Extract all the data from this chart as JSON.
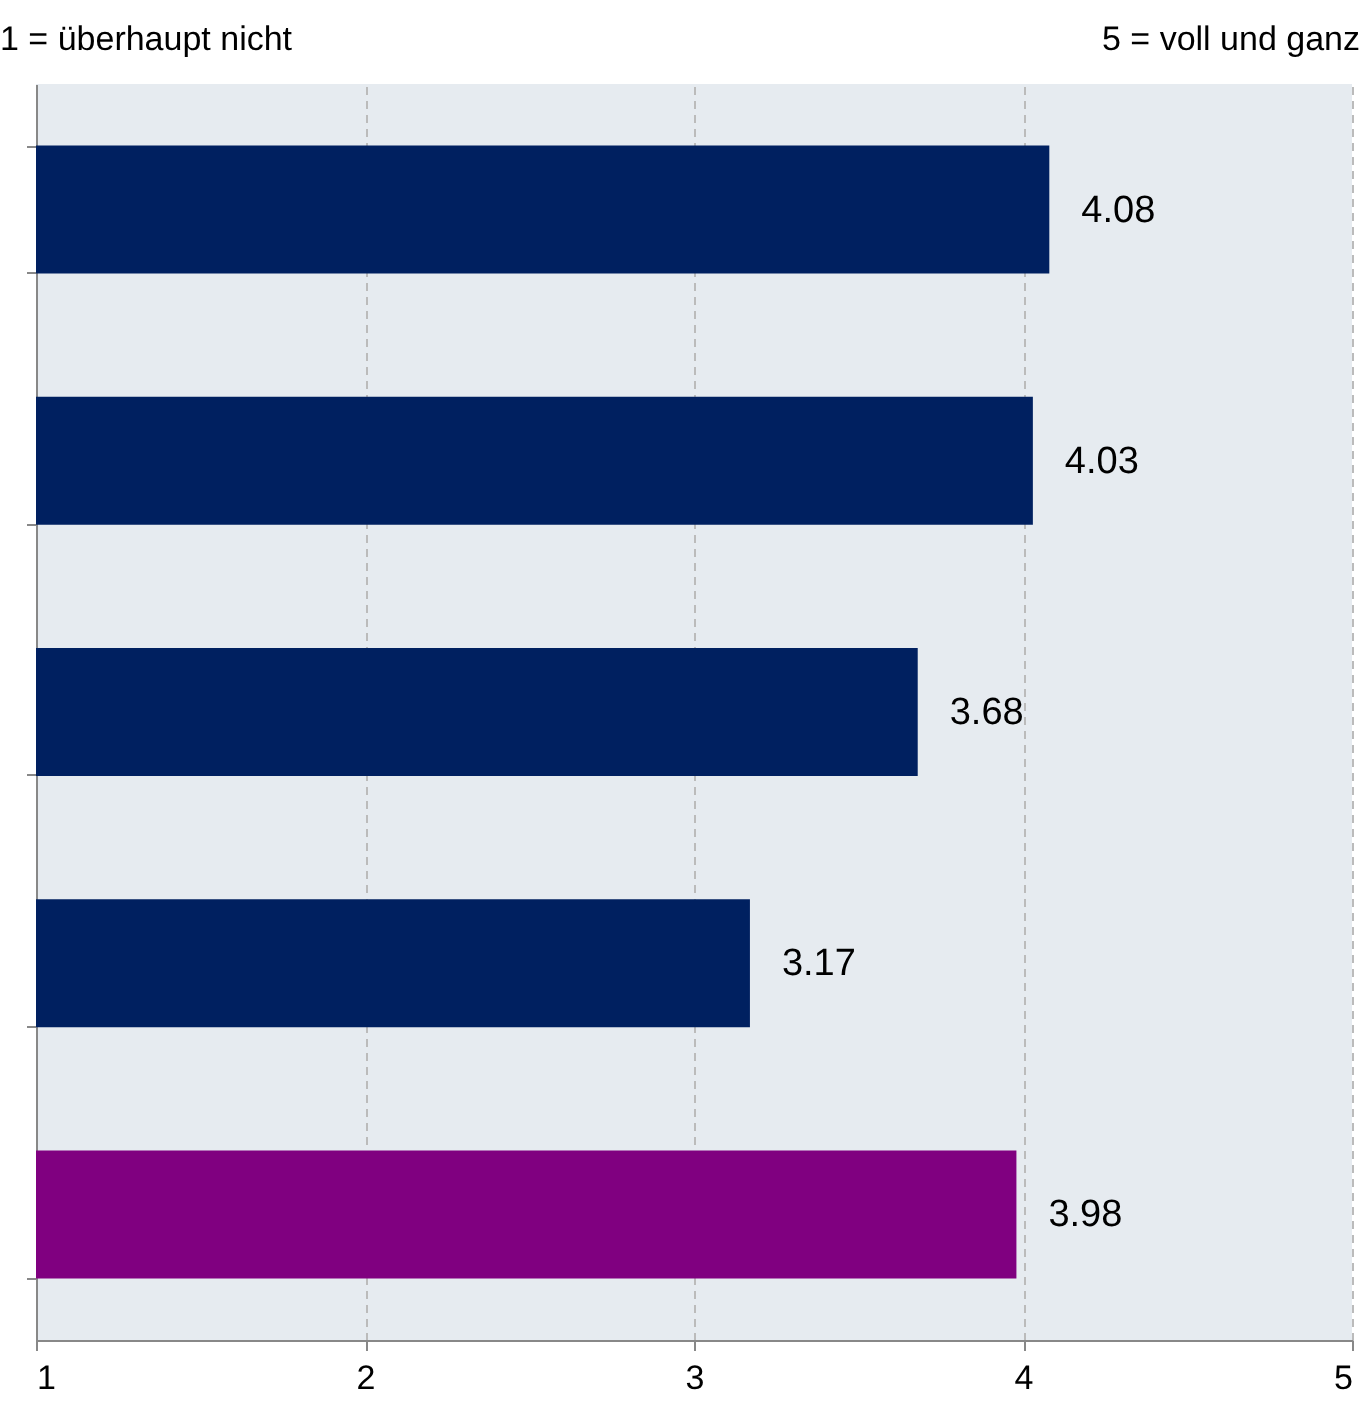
{
  "chart_data": {
    "type": "bar",
    "orientation": "horizontal",
    "annotations": [
      "1 = überhaupt nicht",
      "5 = voll und ganz"
    ],
    "categories": [
      null,
      null,
      null,
      null,
      null
    ],
    "values": [
      4.08,
      4.03,
      3.68,
      3.17,
      3.98
    ],
    "colors": [
      "#002060",
      "#002060",
      "#002060",
      "#002060",
      "#800080"
    ],
    "xlim": [
      1,
      5
    ],
    "xticks": [
      1,
      2,
      3,
      4,
      5
    ],
    "grid": "x",
    "data_labels": true,
    "tick_labels": "x"
  }
}
